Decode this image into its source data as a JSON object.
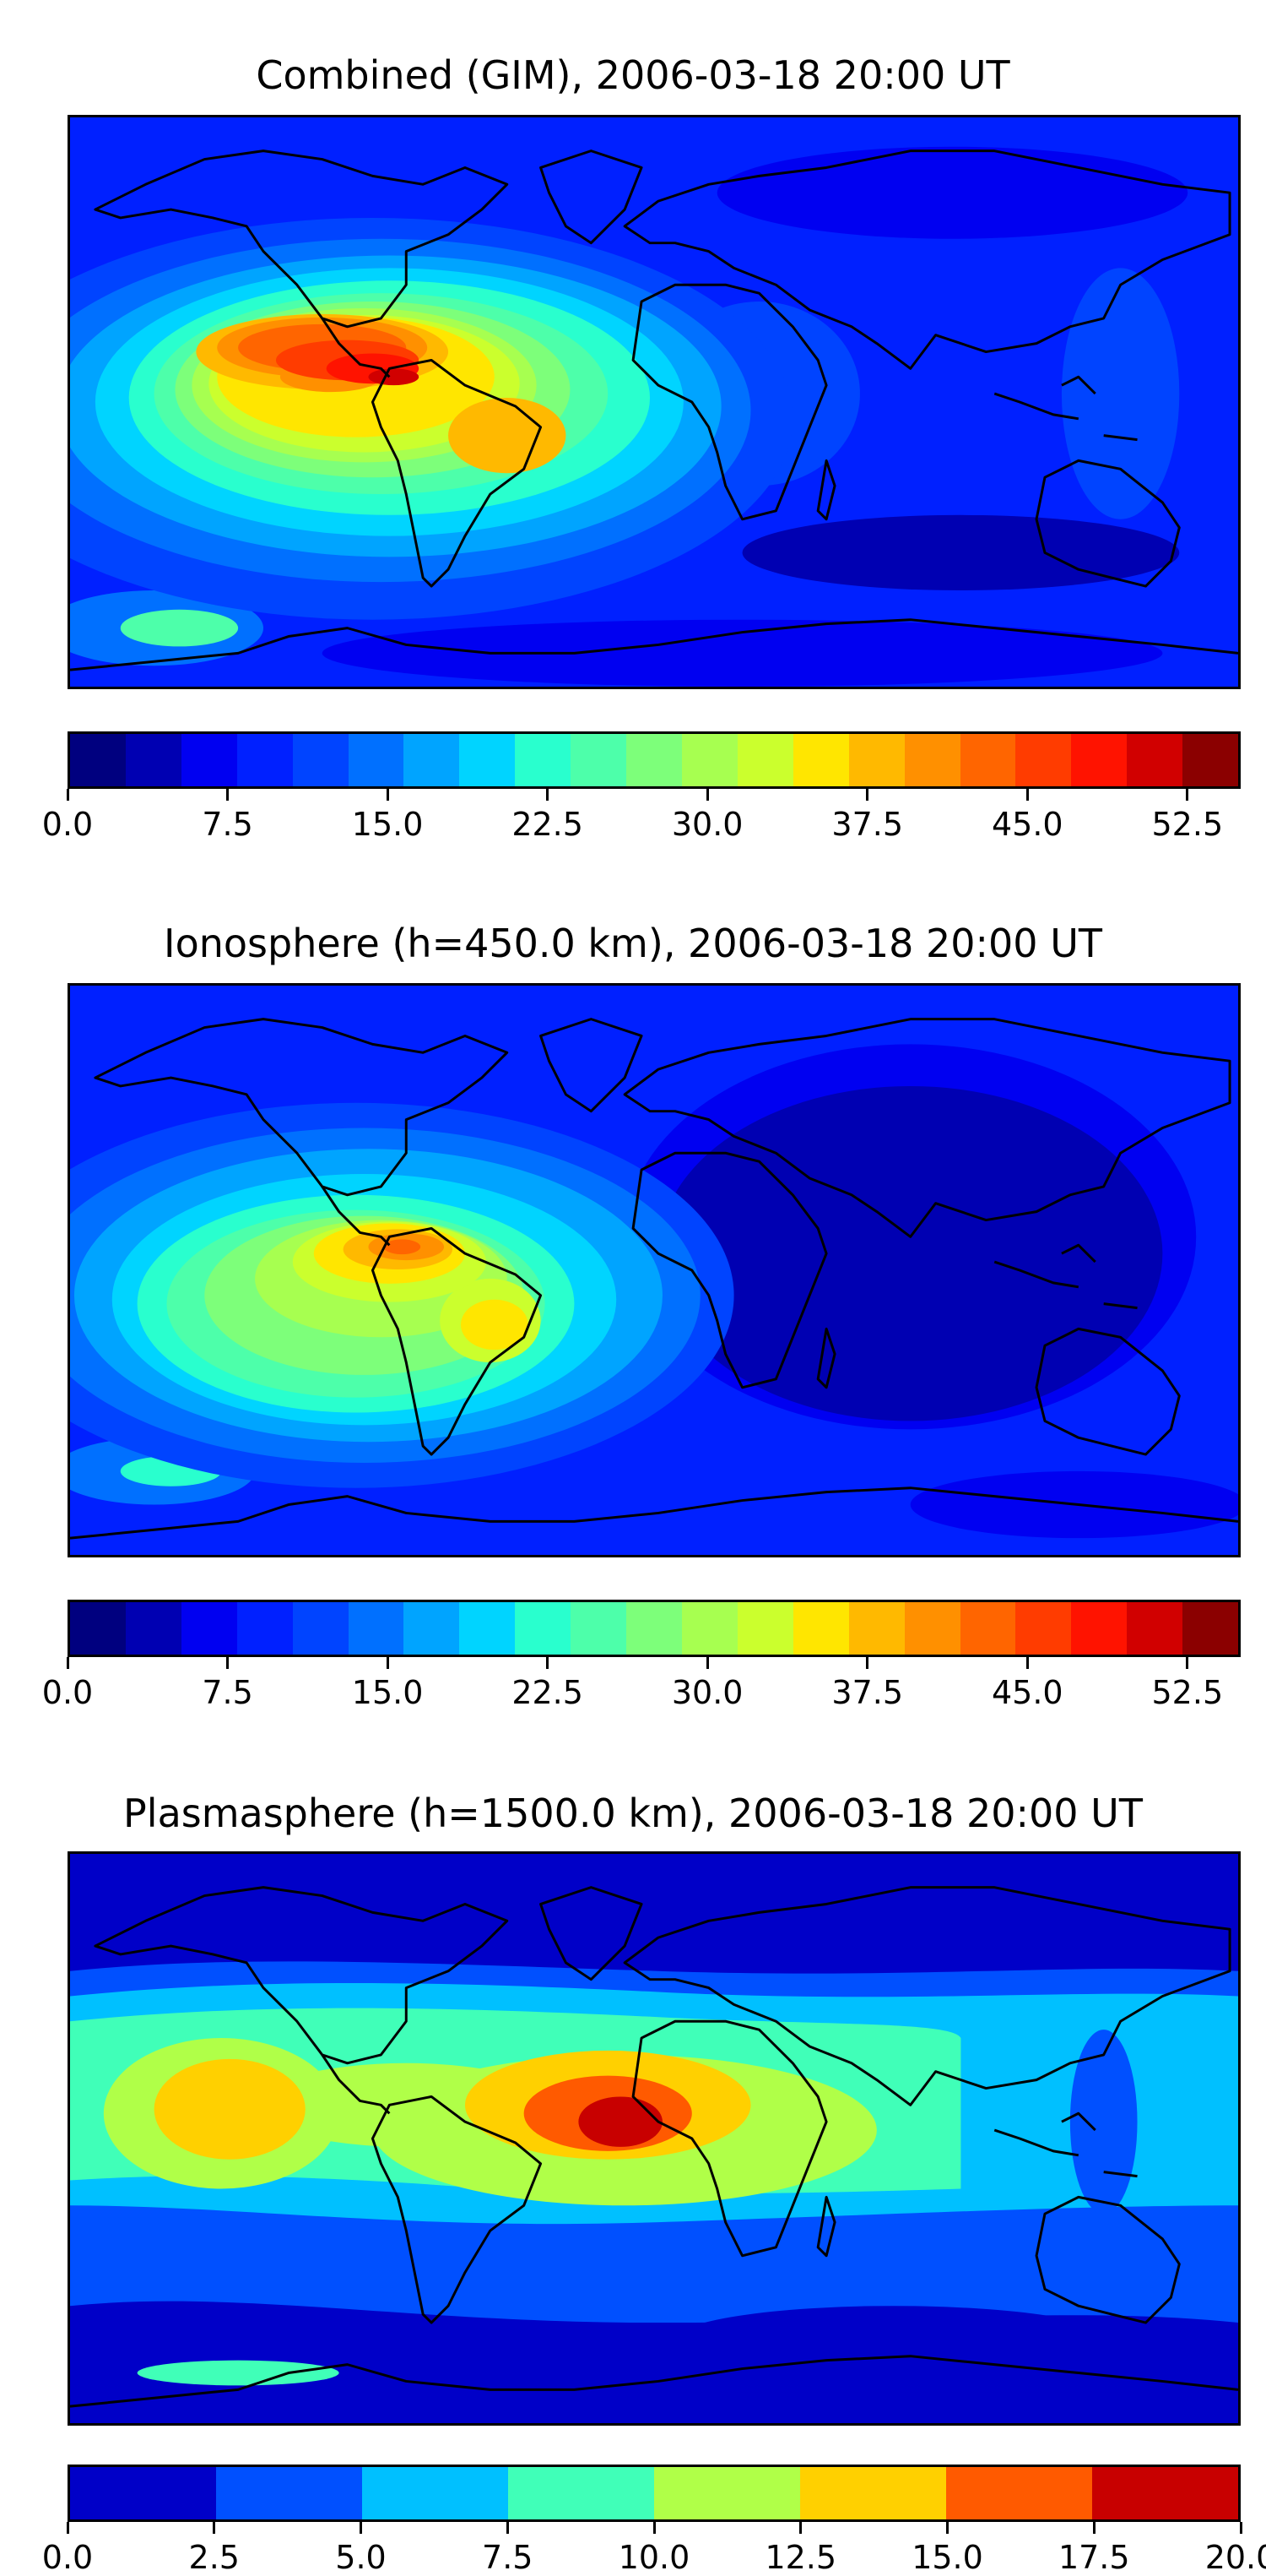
{
  "panels": [
    {
      "title": "Combined (GIM), 2006-03-18 20:00 UT",
      "colorbar": {
        "colors": [
          "#00007f",
          "#0000b2",
          "#0000f1",
          "#0020ff",
          "#0044ff",
          "#0070ff",
          "#00a4ff",
          "#00d4ff",
          "#29ffce",
          "#4dffaa",
          "#7dff7a",
          "#a7ff50",
          "#cbff2d",
          "#ffe600",
          "#ffb900",
          "#ff9000",
          "#ff6500",
          "#ff3c00",
          "#ff1300",
          "#d10000",
          "#8b0000"
        ],
        "ticks": [
          "0.0",
          "7.5",
          "15.0",
          "22.5",
          "30.0",
          "37.5",
          "45.0",
          "52.5"
        ],
        "tick_values": [
          0,
          7.5,
          15,
          22.5,
          30,
          37.5,
          45,
          52.5
        ],
        "range": [
          0,
          55
        ]
      }
    },
    {
      "title": "Ionosphere  (h=450.0 km), 2006-03-18 20:00 UT",
      "colorbar": {
        "colors": [
          "#00007f",
          "#0000b2",
          "#0000f1",
          "#0020ff",
          "#0044ff",
          "#0070ff",
          "#00a4ff",
          "#00d4ff",
          "#29ffce",
          "#4dffaa",
          "#7dff7a",
          "#a7ff50",
          "#cbff2d",
          "#ffe600",
          "#ffb900",
          "#ff9000",
          "#ff6500",
          "#ff3c00",
          "#ff1300",
          "#d10000",
          "#8b0000"
        ],
        "ticks": [
          "0.0",
          "7.5",
          "15.0",
          "22.5",
          "30.0",
          "37.5",
          "45.0",
          "52.5"
        ],
        "tick_values": [
          0,
          7.5,
          15,
          22.5,
          30,
          37.5,
          45,
          52.5
        ],
        "range": [
          0,
          55
        ]
      }
    },
    {
      "title": "Plasmasphere (h=1500.0 km), 2006-03-18 20:00 UT",
      "colorbar": {
        "colors": [
          "#0000c8",
          "#0050ff",
          "#00c0ff",
          "#40ffb8",
          "#b0ff48",
          "#ffd000",
          "#ff5a00",
          "#c80000"
        ],
        "ticks": [
          "0.0",
          "2.5",
          "5.0",
          "7.5",
          "10.0",
          "12.5",
          "15.0",
          "17.5",
          "20.0"
        ],
        "tick_values": [
          0,
          2.5,
          5,
          7.5,
          10,
          12.5,
          15,
          17.5,
          20
        ],
        "range": [
          0,
          20
        ]
      }
    }
  ]
}
